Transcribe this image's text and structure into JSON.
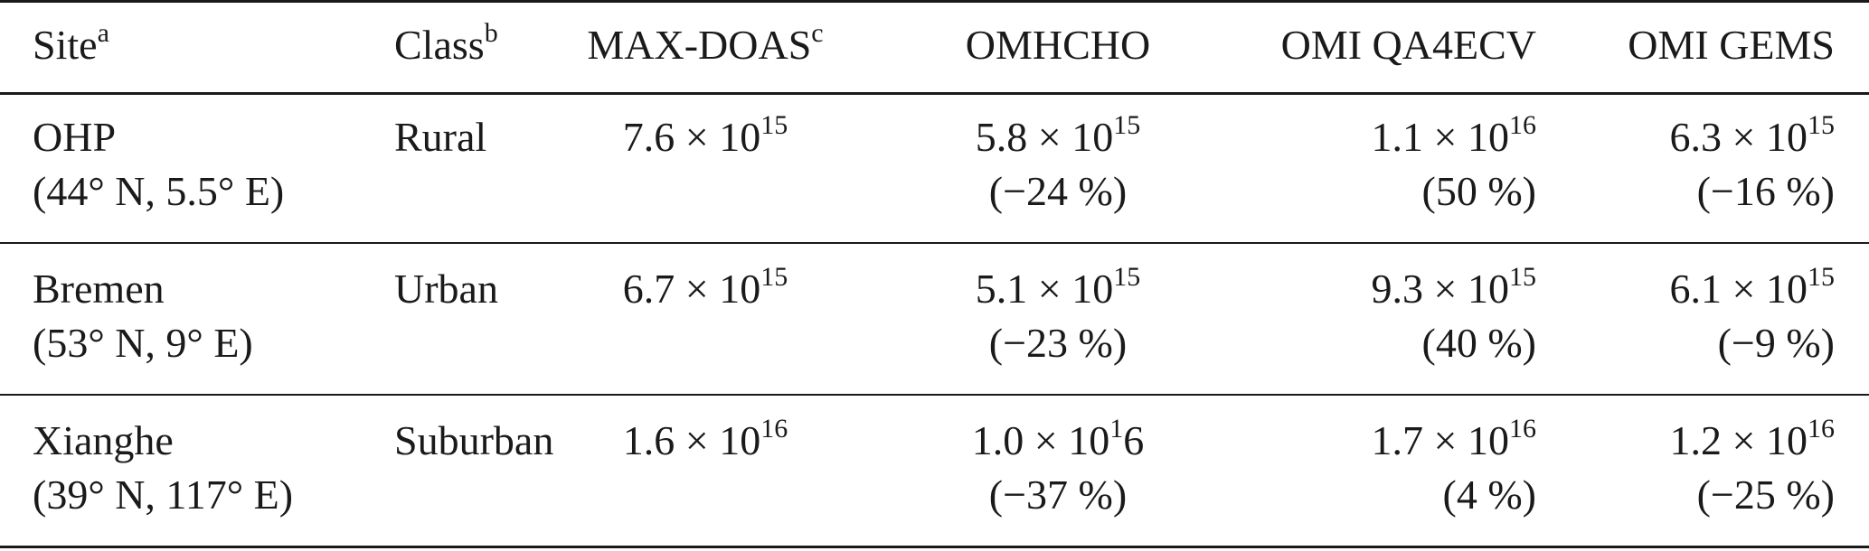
{
  "header": {
    "site": "Site",
    "site_note": "a",
    "class": "Class",
    "class_note": "b",
    "maxdoas": "MAX-DOAS",
    "maxdoas_note": "c",
    "omhcho": "OMHCHO",
    "qa4ecv": "OMI QA4ECV",
    "gems": "OMI GEMS"
  },
  "rows": [
    {
      "site": "OHP",
      "coords": "(44° N, 5.5° E)",
      "class": "Rural",
      "maxdoas": {
        "mant": "7.6 × 10",
        "exp": "15"
      },
      "omhcho": {
        "mant": "5.8 × 10",
        "exp": "15",
        "pct": "(−24 %)"
      },
      "qa4ecv": {
        "mant": "1.1 × 10",
        "exp": "16",
        "pct": "(50 %)"
      },
      "gems": {
        "mant": "6.3 × 10",
        "exp": "15",
        "pct": "(−16 %)"
      }
    },
    {
      "site": "Bremen",
      "coords": "(53° N, 9° E)",
      "class": "Urban",
      "maxdoas": {
        "mant": "6.7 × 10",
        "exp": "15"
      },
      "omhcho": {
        "mant": "5.1 × 10",
        "exp": "15",
        "pct": "(−23 %)"
      },
      "qa4ecv": {
        "mant": "9.3 × 10",
        "exp": "15",
        "pct": "(40 %)"
      },
      "gems": {
        "mant": "6.1 × 10",
        "exp": "15",
        "pct": "(−9 %)"
      }
    },
    {
      "site": "Xianghe",
      "coords": "(39° N, 117° E)",
      "class": "Suburban",
      "maxdoas": {
        "mant": "1.6 × 10",
        "exp": "16"
      },
      "omhcho": {
        "mant": "1.0 × 10",
        "exp": "1",
        "tail": "6",
        "pct": "(−37 %)"
      },
      "qa4ecv": {
        "mant": "1.7 × 10",
        "exp": "16",
        "pct": "(4 %)"
      },
      "gems": {
        "mant": "1.2 × 10",
        "exp": "16",
        "pct": "(−25 %)"
      }
    }
  ]
}
